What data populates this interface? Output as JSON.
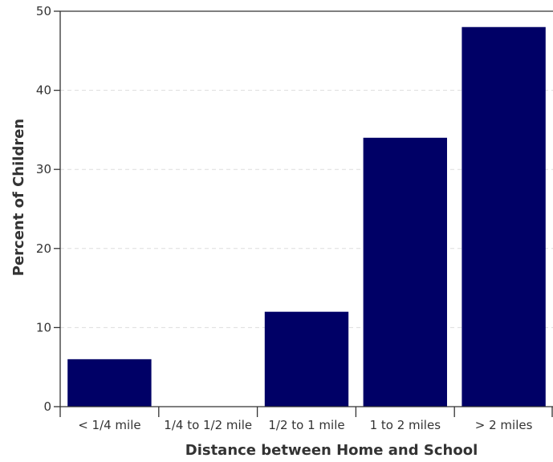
{
  "chart_data": {
    "type": "bar",
    "categories": [
      "< 1/4 mile",
      "1/4 to 1/2 mile",
      "1/2 to 1 mile",
      "1 to 2 miles",
      "> 2 miles"
    ],
    "values": [
      6,
      0,
      12,
      34,
      48
    ],
    "xlabel": "Distance between Home and School",
    "ylabel": "Percent of Children",
    "ylim": [
      0,
      50
    ],
    "yticks": [
      0,
      10,
      20,
      30,
      40,
      50
    ],
    "grid": true,
    "bar_color": "#000066",
    "legend": "none"
  }
}
